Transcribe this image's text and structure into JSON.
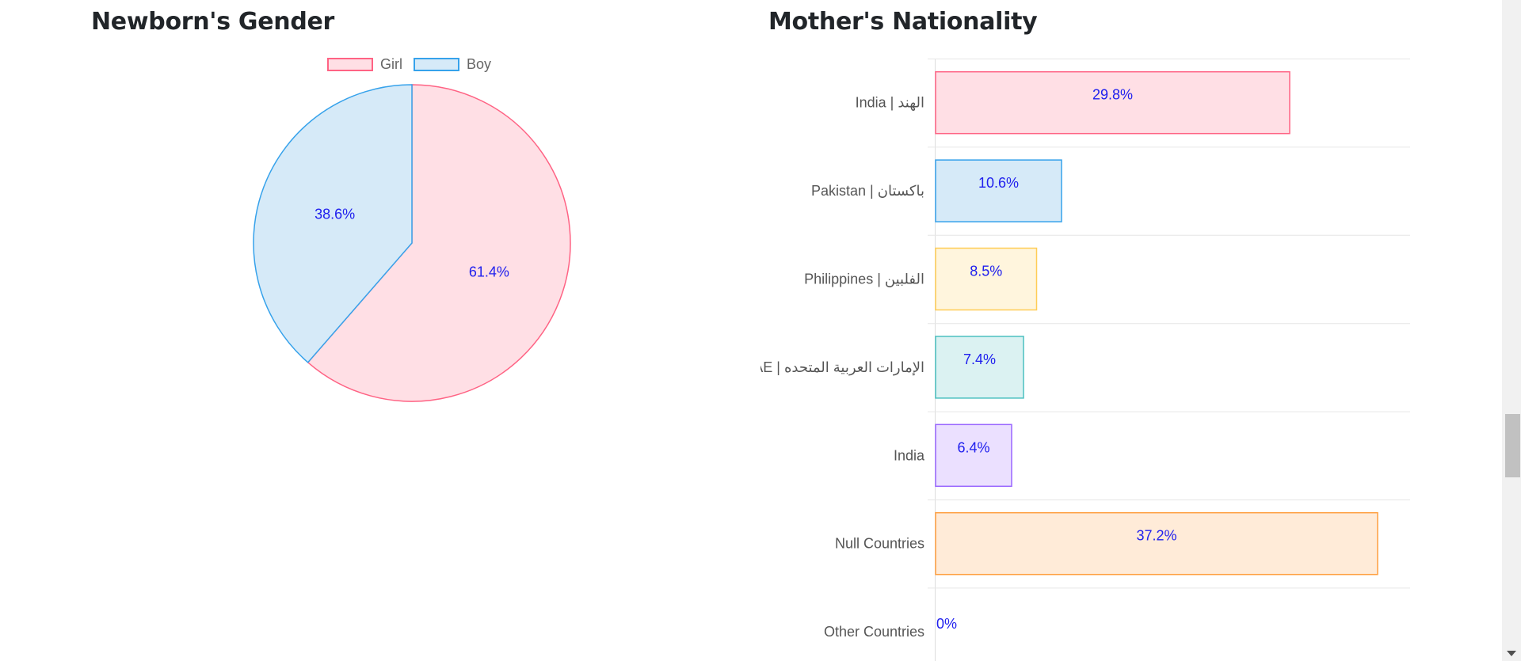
{
  "gender_chart": {
    "title": "Newborn's Gender"
  },
  "nationality_chart": {
    "title": "Mother's Nationality"
  },
  "chart_data": [
    {
      "type": "pie",
      "title": "Newborn's Gender",
      "legend": "top",
      "categories": [
        "Girl",
        "Boy"
      ],
      "values": [
        61.4,
        38.6
      ],
      "data_labels": [
        "61.4%",
        "38.6%"
      ],
      "fill_colors": [
        "#ffdfe5",
        "#d6eaf8"
      ],
      "border_colors": [
        "#ff6384",
        "#36a2eb"
      ]
    },
    {
      "type": "bar",
      "orientation": "horizontal",
      "title": "Mother's Nationality",
      "categories": [
        "India | الهند",
        "Pakistan | باكستان",
        "Philippines | الفلبين",
        "UAE | الإمارات العربية المتحده",
        "India",
        "Null Countries",
        "Other Countries"
      ],
      "values": [
        29.8,
        10.6,
        8.5,
        7.4,
        6.4,
        37.2,
        0
      ],
      "data_labels": [
        "29.8%",
        "10.6%",
        "8.5%",
        "7.4%",
        "6.4%",
        "37.2%",
        "0%"
      ],
      "xlim": [
        0,
        40
      ],
      "grid": true,
      "fill_colors": [
        "#ffdfe5",
        "#d6eaf8",
        "#fff5dd",
        "#dbf2f2",
        "#ebe0ff",
        "#ffebd8",
        "#f4f5f5"
      ],
      "border_colors": [
        "#ff6384",
        "#36a2eb",
        "#ffcd56",
        "#4bc0c0",
        "#9966ff",
        "#ff9f40",
        "#c9cbcf"
      ]
    }
  ]
}
